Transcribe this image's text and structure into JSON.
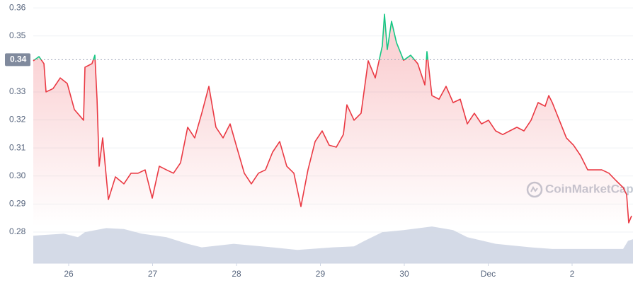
{
  "chart_data": {
    "type": "line",
    "x": [
      0.578,
      0.646,
      0.705,
      0.73,
      0.814,
      0.899,
      0.983,
      1.068,
      1.177,
      1.194,
      1.278,
      1.312,
      1.338,
      1.363,
      1.405,
      1.473,
      1.557,
      1.658,
      1.743,
      1.827,
      1.911,
      1.996,
      2.08,
      2.165,
      2.249,
      2.333,
      2.418,
      2.502,
      2.586,
      2.671,
      2.755,
      2.84,
      2.924,
      3.008,
      3.093,
      3.177,
      3.262,
      3.346,
      3.43,
      3.515,
      3.599,
      3.684,
      3.768,
      3.852,
      3.937,
      4.021,
      4.105,
      4.19,
      4.274,
      4.316,
      4.401,
      4.485,
      4.57,
      4.654,
      4.738,
      4.764,
      4.797,
      4.848,
      4.907,
      4.992,
      5.076,
      5.16,
      5.245,
      5.27,
      5.329,
      5.414,
      5.498,
      5.582,
      5.667,
      5.751,
      5.835,
      5.92,
      6.004,
      6.089,
      6.173,
      6.257,
      6.342,
      6.426,
      6.511,
      6.595,
      6.679,
      6.722,
      6.764,
      6.848,
      6.932,
      7.017,
      7.101,
      7.186,
      7.27,
      7.354,
      7.439,
      7.523,
      7.608,
      7.65,
      7.675,
      7.709
    ],
    "values": [
      0.3411,
      0.3426,
      0.3401,
      0.33,
      0.3312,
      0.335,
      0.333,
      0.3237,
      0.3199,
      0.3388,
      0.3401,
      0.3431,
      0.3274,
      0.3035,
      0.3136,
      0.2916,
      0.2997,
      0.2972,
      0.301,
      0.301,
      0.3022,
      0.2921,
      0.3035,
      0.3022,
      0.301,
      0.3047,
      0.3174,
      0.3136,
      0.3224,
      0.332,
      0.3174,
      0.3136,
      0.3186,
      0.3098,
      0.301,
      0.2972,
      0.301,
      0.3022,
      0.3085,
      0.3123,
      0.3035,
      0.301,
      0.2891,
      0.3022,
      0.3123,
      0.3161,
      0.311,
      0.3103,
      0.3148,
      0.3254,
      0.3199,
      0.3224,
      0.3411,
      0.335,
      0.3464,
      0.3577,
      0.3451,
      0.3552,
      0.3476,
      0.3413,
      0.3431,
      0.3401,
      0.3325,
      0.3444,
      0.3287,
      0.3274,
      0.332,
      0.3262,
      0.3274,
      0.3186,
      0.3224,
      0.3186,
      0.3199,
      0.3161,
      0.3148,
      0.3161,
      0.3174,
      0.3161,
      0.3199,
      0.3262,
      0.3249,
      0.3287,
      0.3262,
      0.3199,
      0.3136,
      0.311,
      0.3073,
      0.3022,
      0.3022,
      0.3022,
      0.301,
      0.2984,
      0.2959,
      0.2934,
      0.2833,
      0.2858
    ],
    "color_up": "#16c784",
    "color_down": "#ea3943",
    "reference": {
      "value": 0.3415,
      "label": "0.34"
    },
    "volume": {
      "x": [
        0.578,
        0.941,
        1.11,
        1.194,
        1.447,
        1.658,
        1.869,
        2.165,
        2.418,
        2.586,
        2.966,
        3.43,
        3.726,
        4.148,
        4.401,
        4.527,
        4.738,
        4.992,
        5.329,
        5.582,
        5.751,
        6.089,
        6.511,
        6.764,
        7.608,
        7.667,
        7.726
      ],
      "values": [
        54,
        58,
        51,
        61,
        69,
        67,
        58,
        51,
        38,
        31,
        38,
        31,
        26,
        31,
        33,
        44,
        61,
        65,
        72,
        65,
        51,
        38,
        31,
        28,
        28,
        44,
        47
      ],
      "lim": [
        0,
        100
      ],
      "color": "#cfd6e4"
    },
    "xlim": [
      0.578,
      7.726
    ],
    "ylim": [
      0.2689,
      0.3628
    ],
    "xticks": [
      {
        "value": 1,
        "label": "26"
      },
      {
        "value": 2,
        "label": "27"
      },
      {
        "value": 3,
        "label": "28"
      },
      {
        "value": 4,
        "label": "29"
      },
      {
        "value": 5,
        "label": "30"
      },
      {
        "value": 6,
        "label": "Dec"
      },
      {
        "value": 7,
        "label": "2"
      }
    ],
    "yticks": [
      0.28,
      0.29,
      {
        "value": 0.3,
        "label": "0.30"
      },
      0.31,
      0.32,
      0.33,
      0.35,
      0.36
    ],
    "grid": true,
    "watermark": "CoinMarketCap"
  }
}
